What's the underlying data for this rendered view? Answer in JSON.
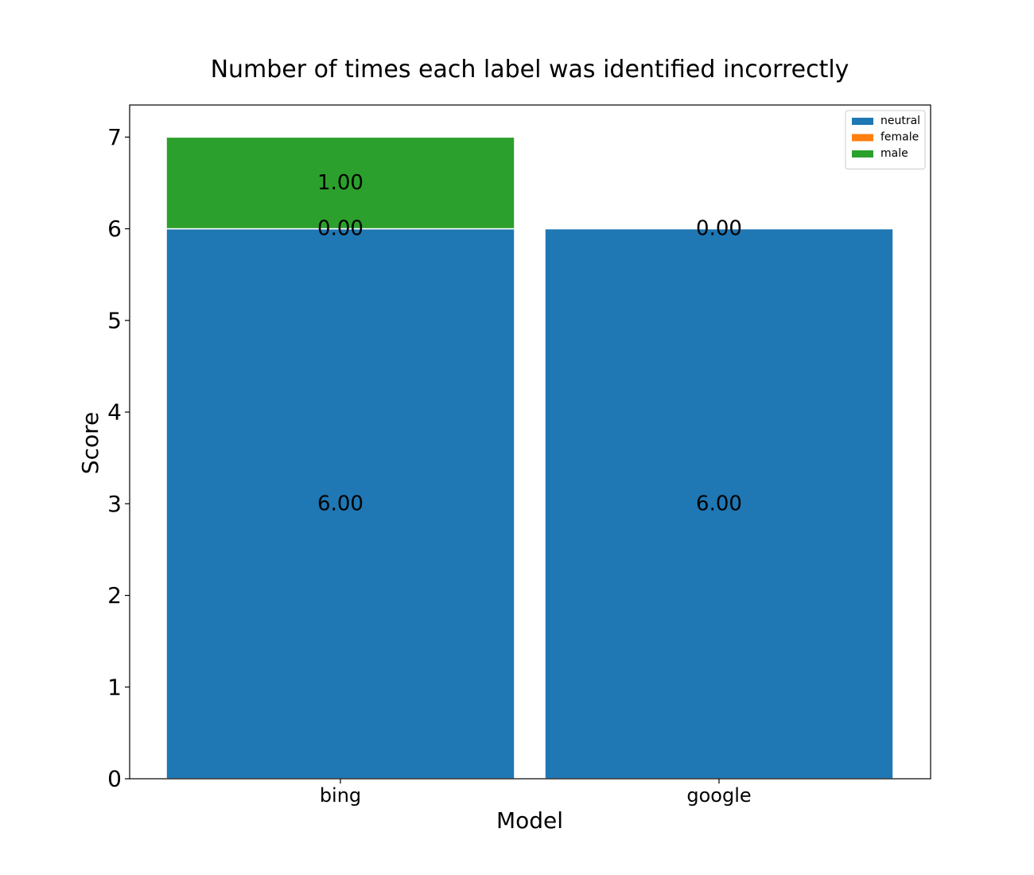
{
  "chart_data": {
    "type": "bar",
    "stacked": true,
    "title": "Number of times each label was identified incorrectly",
    "xlabel": "Model",
    "ylabel": "Score",
    "categories": [
      "bing",
      "google"
    ],
    "series": [
      {
        "name": "neutral",
        "values": [
          6,
          6
        ],
        "color": "#1f77b4"
      },
      {
        "name": "female",
        "values": [
          0,
          0
        ],
        "color": "#ff7f0e"
      },
      {
        "name": "male",
        "values": [
          1,
          0
        ],
        "color": "#2ca02c"
      }
    ],
    "data_labels": [
      {
        "category": "bing",
        "series": "neutral",
        "text": "6.00"
      },
      {
        "category": "bing",
        "series": "female",
        "text": "0.00"
      },
      {
        "category": "bing",
        "series": "male",
        "text": "1.00"
      },
      {
        "category": "google",
        "series": "neutral",
        "text": "6.00"
      },
      {
        "category": "google",
        "series": "female",
        "text": "0.00"
      }
    ],
    "ylim": [
      0,
      7.35
    ],
    "yticks": [
      "0",
      "1",
      "2",
      "3",
      "4",
      "5",
      "6",
      "7"
    ],
    "grid": false,
    "legend_position": "top-right"
  }
}
